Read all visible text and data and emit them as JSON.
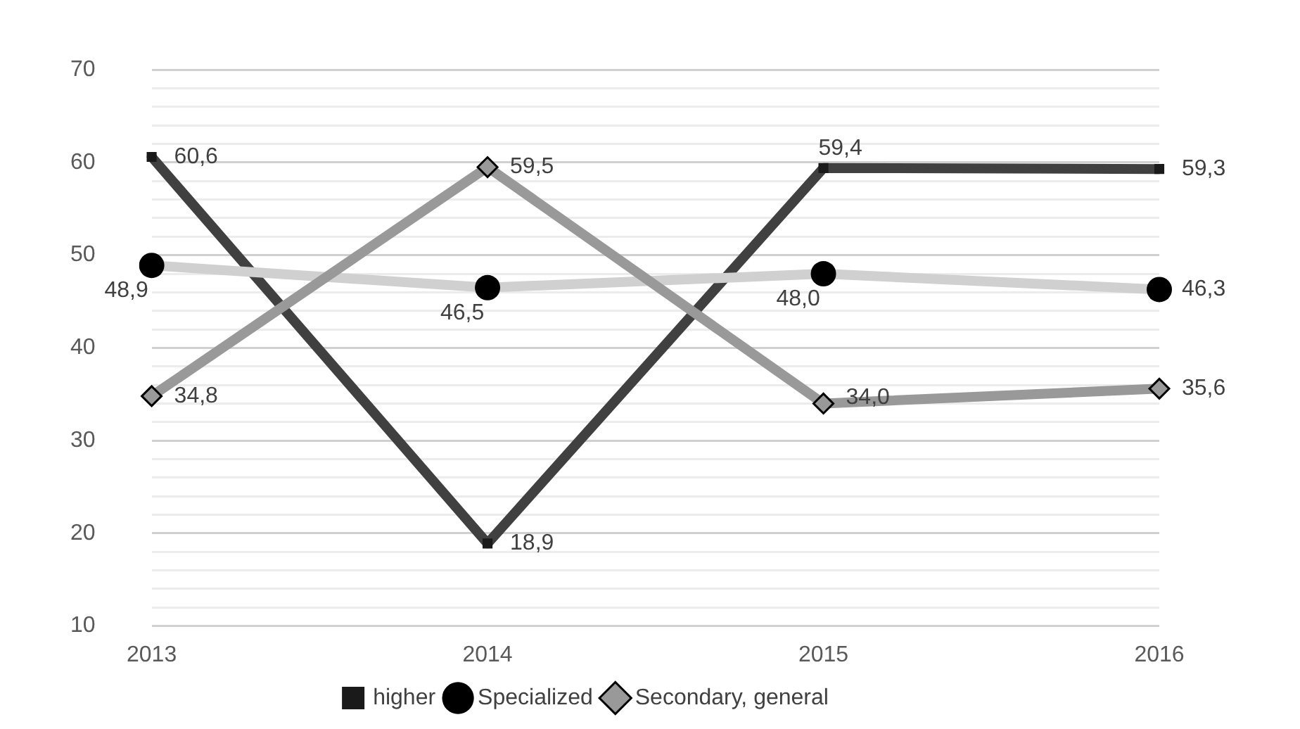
{
  "chart_data": {
    "type": "line",
    "categories": [
      "2013",
      "2014",
      "2015",
      "2016"
    ],
    "series": [
      {
        "name": "higher",
        "color": "#404040",
        "values": [
          60.6,
          18.9,
          59.4,
          59.3
        ],
        "marker": "square",
        "value_labels": [
          "60,6",
          "18,9",
          "59,4",
          "59,3"
        ]
      },
      {
        "name": "Specialized",
        "color": "#d0d0d0",
        "values": [
          48.9,
          46.5,
          48.0,
          46.3
        ],
        "marker": "circle",
        "value_labels": [
          "48,9",
          "46,5",
          "48,0",
          "46,3"
        ]
      },
      {
        "name": "Secondary, general",
        "color": "#999999",
        "values": [
          34.8,
          59.5,
          34.0,
          35.6
        ],
        "marker": "diamond",
        "value_labels": [
          "34,8",
          "59,5",
          "34,0",
          "35,6"
        ]
      }
    ],
    "ylim": [
      10,
      70
    ],
    "yticks": [
      10,
      {
        "value": 12,
        "label": null
      },
      {
        "value": 14,
        "label": null
      },
      {
        "value": 16,
        "label": null
      },
      {
        "value": 18,
        "label": null
      },
      20,
      {
        "value": 22,
        "label": null
      },
      {
        "value": 24,
        "label": null
      },
      {
        "value": 26,
        "label": null
      },
      {
        "value": 28,
        "label": null
      },
      30,
      {
        "value": 32,
        "label": null
      },
      {
        "value": 34,
        "label": null
      },
      {
        "value": 36,
        "label": null
      },
      {
        "value": 38,
        "label": null
      },
      40,
      {
        "value": 42,
        "label": null
      },
      {
        "value": 44,
        "label": null
      },
      {
        "value": 46,
        "label": null
      },
      {
        "value": 48,
        "label": null
      },
      50,
      {
        "value": 52,
        "label": null
      },
      {
        "value": 54,
        "label": null
      },
      {
        "value": 56,
        "label": null
      },
      {
        "value": 58,
        "label": null
      },
      60,
      {
        "value": 62,
        "label": null
      },
      {
        "value": 64,
        "label": null
      },
      {
        "value": 66,
        "label": null
      },
      {
        "value": 68,
        "label": null
      },
      70
    ],
    "grid": "y",
    "legend": "bottom",
    "line_style": "solid"
  }
}
